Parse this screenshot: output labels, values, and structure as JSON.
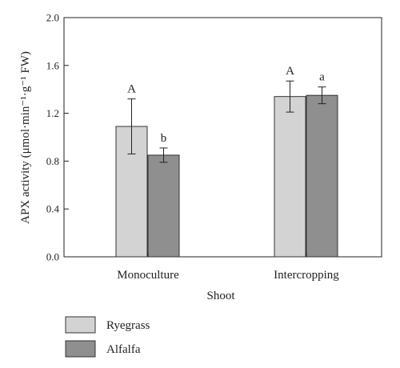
{
  "chart_data": {
    "type": "bar",
    "title": "",
    "xlabel": "Shoot",
    "ylabel": "APX activity (μmol·min⁻¹·g⁻¹ FW)",
    "ylim": [
      0.0,
      2.0
    ],
    "yticks": [
      "0.0",
      "0.4",
      "0.8",
      "1.2",
      "1.6",
      "2.0"
    ],
    "categories": [
      "Monoculture",
      "Intercropping"
    ],
    "series": [
      {
        "name": "Ryegrass",
        "values": [
          1.09,
          1.34
        ],
        "errors": [
          0.23,
          0.13
        ],
        "letters": [
          "A",
          "A"
        ],
        "color": "#d3d3d3"
      },
      {
        "name": "Alfalfa",
        "values": [
          0.85,
          1.35
        ],
        "errors": [
          0.06,
          0.07
        ],
        "letters": [
          "b",
          "a"
        ],
        "color": "#8f8f8f"
      }
    ],
    "grid": false,
    "legend_position": "bottom-left"
  }
}
